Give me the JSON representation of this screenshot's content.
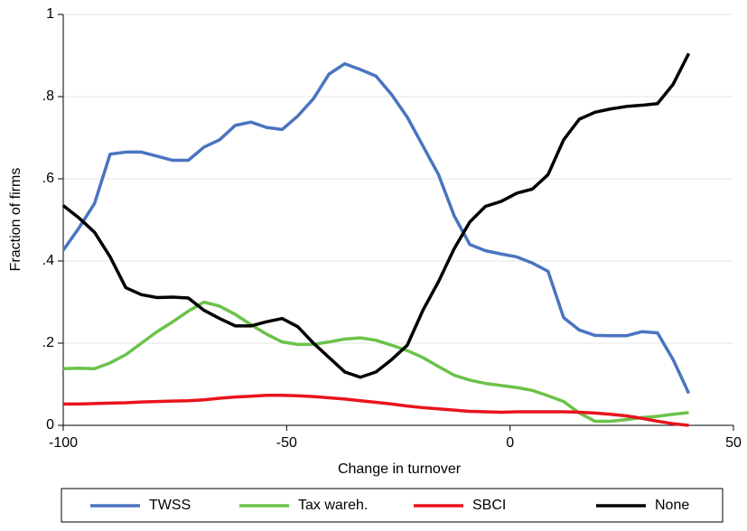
{
  "chart_data": {
    "type": "line",
    "xlabel": "Change in turnover",
    "ylabel": "Fraction of firms",
    "x": [
      -100,
      -96.5,
      -93,
      -89.5,
      -86,
      -82.5,
      -79,
      -75.5,
      -72,
      -68.5,
      -65,
      -61.5,
      -58,
      -54.5,
      -51,
      -47.5,
      -44,
      -40.5,
      -37,
      -33.5,
      -30,
      -26.5,
      -23,
      -19.5,
      -16,
      -12.5,
      -9,
      -5.5,
      -2,
      1.5,
      5,
      8.5,
      12,
      15.5,
      19,
      22.5,
      26,
      29.5,
      33,
      36.5,
      40
    ],
    "series": [
      {
        "name": "TWSS",
        "color": "#4a74c0",
        "values": [
          0.426,
          0.48,
          0.54,
          0.66,
          0.665,
          0.665,
          0.655,
          0.645,
          0.645,
          0.677,
          0.695,
          0.73,
          0.738,
          0.725,
          0.72,
          0.753,
          0.795,
          0.855,
          0.88,
          0.866,
          0.85,
          0.805,
          0.75,
          0.68,
          0.61,
          0.51,
          0.44,
          0.425,
          0.417,
          0.41,
          0.395,
          0.375,
          0.262,
          0.232,
          0.219,
          0.218,
          0.218,
          0.228,
          0.225,
          0.16,
          0.078
        ]
      },
      {
        "name": "Tax wareh.",
        "color": "#6cc24a",
        "values": [
          0.138,
          0.139,
          0.138,
          0.152,
          0.172,
          0.2,
          0.228,
          0.252,
          0.278,
          0.3,
          0.29,
          0.27,
          0.245,
          0.222,
          0.203,
          0.197,
          0.197,
          0.203,
          0.21,
          0.213,
          0.207,
          0.195,
          0.182,
          0.165,
          0.143,
          0.122,
          0.11,
          0.102,
          0.097,
          0.092,
          0.085,
          0.072,
          0.058,
          0.03,
          0.01,
          0.01,
          0.014,
          0.019,
          0.022,
          0.027,
          0.031
        ]
      },
      {
        "name": "SBCI",
        "color": "#e8141c",
        "values": [
          0.052,
          0.052,
          0.053,
          0.054,
          0.055,
          0.057,
          0.058,
          0.059,
          0.06,
          0.062,
          0.066,
          0.069,
          0.071,
          0.073,
          0.073,
          0.072,
          0.07,
          0.067,
          0.064,
          0.06,
          0.056,
          0.052,
          0.047,
          0.043,
          0.04,
          0.037,
          0.034,
          0.033,
          0.032,
          0.033,
          0.033,
          0.033,
          0.033,
          0.032,
          0.03,
          0.027,
          0.023,
          0.017,
          0.01,
          0.004,
          0
        ]
      },
      {
        "name": "None",
        "color": "#000000",
        "values": [
          0.535,
          0.505,
          0.47,
          0.41,
          0.335,
          0.318,
          0.311,
          0.312,
          0.31,
          0.28,
          0.26,
          0.242,
          0.242,
          0.252,
          0.26,
          0.24,
          0.2,
          0.165,
          0.13,
          0.117,
          0.13,
          0.16,
          0.195,
          0.28,
          0.35,
          0.43,
          0.495,
          0.533,
          0.545,
          0.565,
          0.575,
          0.61,
          0.695,
          0.745,
          0.762,
          0.77,
          0.776,
          0.779,
          0.783,
          0.83,
          0.905
        ]
      }
    ],
    "xlim": [
      -100,
      50
    ],
    "xticks": [
      -100,
      -50,
      0,
      50
    ],
    "ylim": [
      0,
      1
    ],
    "yticks": [
      0,
      {
        "value": 0.2,
        "label": ".2"
      },
      {
        "value": 0.4,
        "label": ".4"
      },
      {
        "value": 0.6,
        "label": ".6"
      },
      {
        "value": 0.8,
        "label": ".8"
      },
      1
    ],
    "grid": true,
    "legend": "bottom"
  }
}
